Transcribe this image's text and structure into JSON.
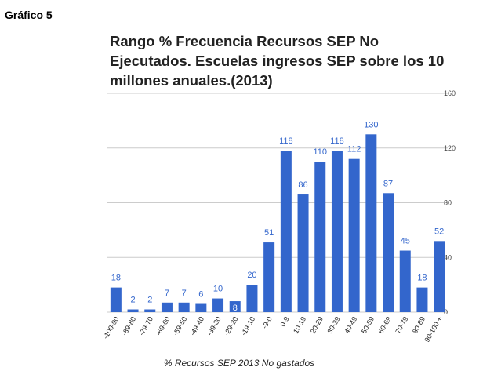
{
  "label": "Gráfico 5",
  "chart_data": {
    "type": "bar",
    "title": "Rango % Frecuencia Recursos SEP No Ejecutados. Escuelas ingresos SEP sobre los 10 millones anuales.(2013)",
    "xlabel": "% Recursos SEP 2013 No gastados",
    "ylabel": "",
    "ylim": [
      0,
      160
    ],
    "yticks": [
      "0",
      "40",
      "80",
      "120",
      "160"
    ],
    "y_axis_position": "right",
    "grid": true,
    "categories": [
      "-100-90",
      "-89-80",
      "-79-70",
      "-69-60",
      "-59-50",
      "-49-40",
      "-39-30",
      "-29-20",
      "-19-10",
      "-9-0",
      "0-9",
      "10-19",
      "20-29",
      "30-39",
      "40-49",
      "50-59",
      "60-69",
      "70-79",
      "80-89",
      "90-100 +"
    ],
    "values": [
      18,
      2,
      2,
      7,
      7,
      6,
      10,
      8,
      20,
      51,
      118,
      86,
      110,
      118,
      112,
      130,
      87,
      45,
      18,
      52
    ],
    "value_labels": [
      "18",
      "2",
      "2",
      "7",
      "7",
      "6",
      "10",
      "8",
      "20",
      "51",
      "118",
      "86",
      "110",
      "118",
      "112",
      "130",
      "87",
      "45",
      "18",
      "52"
    ],
    "colors": {
      "bar": "#3366cc",
      "label": "#3366cc",
      "grid": "#cccccc",
      "axis_text": "#444444"
    }
  }
}
